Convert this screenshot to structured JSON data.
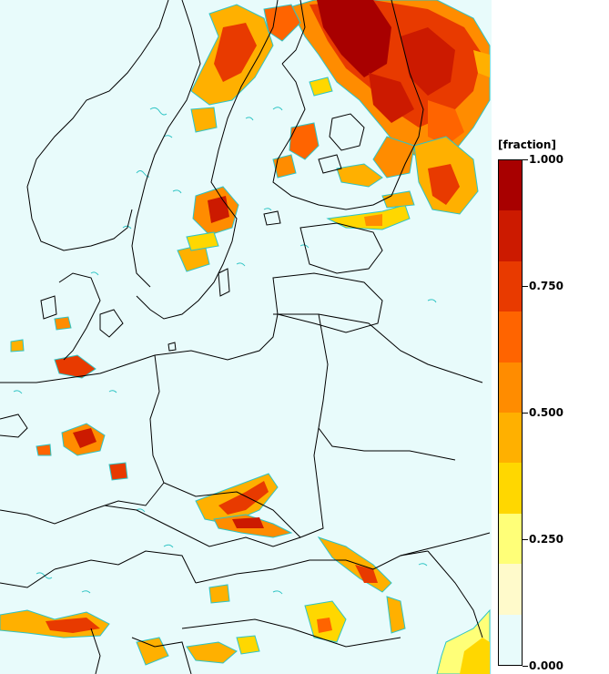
{
  "legend": {
    "title": "[fraction]",
    "labels": [
      "1.000",
      "0.750",
      "0.500",
      "0.250",
      "0.000"
    ],
    "label_values": [
      1.0,
      0.75,
      0.5,
      0.25,
      0.0
    ],
    "colors": [
      "#e8fbfb",
      "#fffacb",
      "#ffff78",
      "#ffd700",
      "#ffb000",
      "#ff8c00",
      "#ff6400",
      "#e83a00",
      "#cc1a00",
      "#a80000"
    ]
  },
  "map": {
    "background_color": "#e8fbfb",
    "border_color": "#000000",
    "contour_color": "#2ec4c4"
  }
}
